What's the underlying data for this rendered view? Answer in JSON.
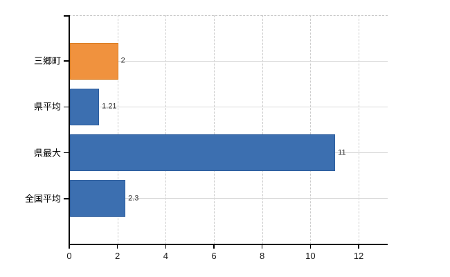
{
  "chart_data": {
    "type": "bar",
    "orientation": "horizontal",
    "title": "",
    "xlabel": "",
    "ylabel": "",
    "categories": [
      "三郷町",
      "県平均",
      "県最大",
      "全国平均"
    ],
    "values": [
      2,
      1.21,
      11,
      2.3
    ],
    "value_labels": [
      "2",
      "1.21",
      "11",
      "2.3"
    ],
    "bar_colors": [
      "#f0923e",
      "#3c6fb0",
      "#3c6fb0",
      "#3c6fb0"
    ],
    "bar_border_colors": [
      "#d87d21",
      "#2d5e9e",
      "#2d5e9e",
      "#2d5e9e"
    ],
    "x_tick_labels": [
      "0",
      "2",
      "4",
      "6",
      "8",
      "10",
      "12"
    ],
    "x_tick_values": [
      0,
      2,
      4,
      6,
      8,
      10,
      12
    ],
    "xlim": [
      0,
      13.2
    ],
    "legend": null,
    "grid": {
      "vertical": "dashed",
      "horizontal": "solid-light",
      "top_border": "dashed"
    },
    "colors": {
      "background": "#ffffff",
      "axis": "#000000",
      "grid_vertical": "#cccccc",
      "grid_horizontal": "#d9d9d9",
      "value_label": "#333333",
      "tick_label": "#1a1a1a",
      "category_label": "#000000",
      "highlight_bar": "#f0923e",
      "default_bar": "#3c6fb0"
    }
  }
}
